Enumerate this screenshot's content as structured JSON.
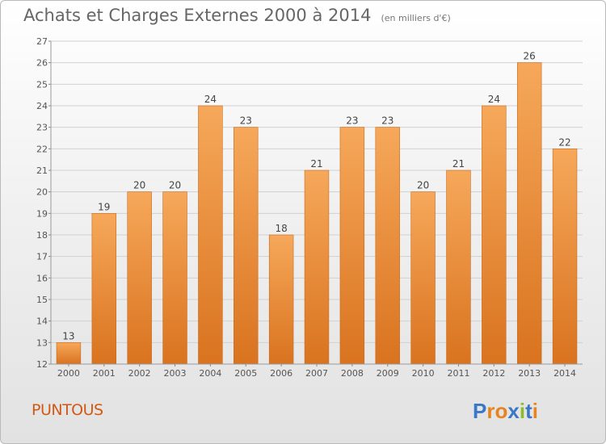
{
  "header": {
    "title": "Achats et Charges Externes 2000 à 2014",
    "unit": "(en milliers d'€)"
  },
  "footer": {
    "commune": "PUNTOUS",
    "logo_text": "Proxiti"
  },
  "colors": {
    "bar_top": "#f6a85a",
    "bar_bottom": "#d9731f",
    "text": "#555555",
    "commune": "#d05a14",
    "logo_letters": [
      "#3a78c7",
      "#e7841f",
      "#e7841f",
      "#3a78c7",
      "#8cbc2a",
      "#3a78c7",
      "#e7841f"
    ]
  },
  "chart_data": {
    "type": "bar",
    "title": "Achats et Charges Externes 2000 à 2014",
    "subtitle": "(en milliers d'€)",
    "xlabel": "",
    "ylabel": "",
    "categories": [
      "2000",
      "2001",
      "2002",
      "2003",
      "2004",
      "2005",
      "2006",
      "2007",
      "2008",
      "2009",
      "2010",
      "2011",
      "2012",
      "2013",
      "2014"
    ],
    "values": [
      13,
      19,
      20,
      20,
      24,
      23,
      18,
      21,
      23,
      23,
      20,
      21,
      24,
      26,
      22
    ],
    "ylim": [
      12,
      27
    ],
    "yticks": [
      12,
      13,
      14,
      15,
      16,
      17,
      18,
      19,
      20,
      21,
      22,
      23,
      24,
      25,
      26,
      27
    ],
    "grid": true,
    "data_labels": true
  }
}
